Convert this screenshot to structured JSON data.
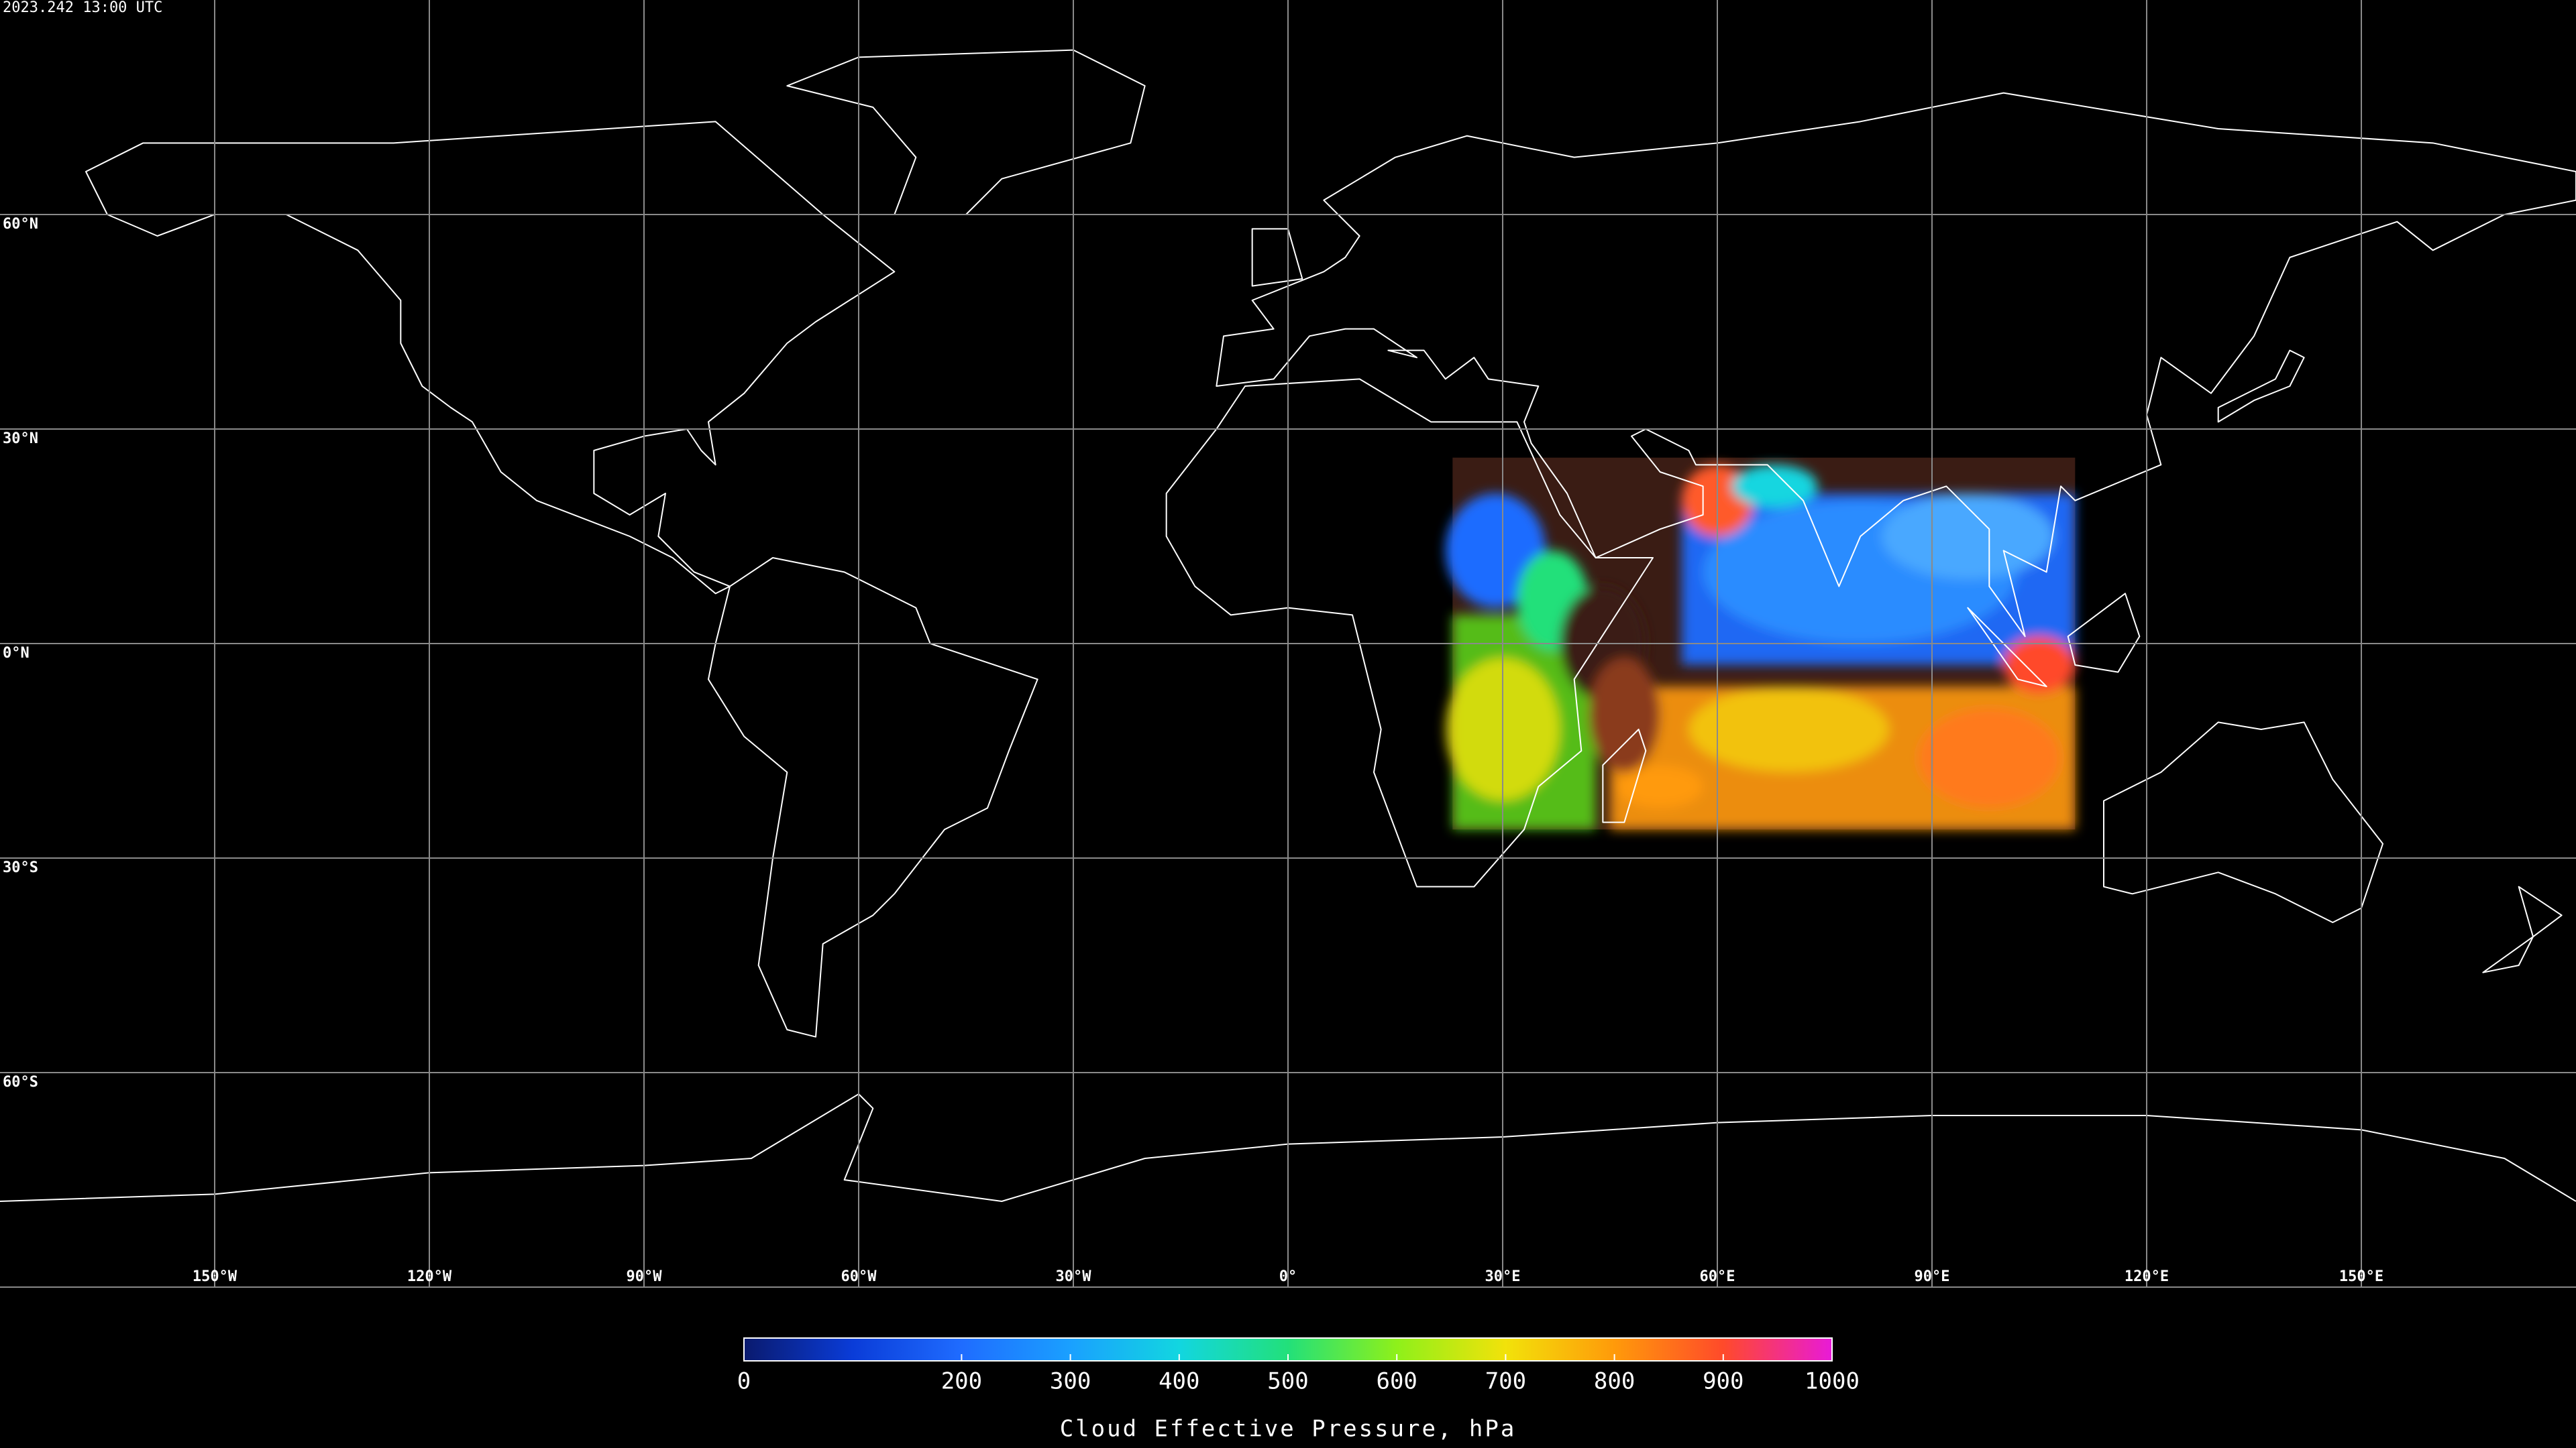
{
  "timestamp": "2023.242 13:00 UTC",
  "map": {
    "lon_range": [
      -180,
      180
    ],
    "lat_range": [
      -90,
      90
    ],
    "lat_lines": [
      {
        "value": 60,
        "label": "60°N"
      },
      {
        "value": 30,
        "label": "30°N"
      },
      {
        "value": 0,
        "label": "0°N"
      },
      {
        "value": -30,
        "label": "30°S"
      },
      {
        "value": -60,
        "label": "60°S"
      }
    ],
    "lon_lines": [
      {
        "value": -150,
        "label": "150°W"
      },
      {
        "value": -120,
        "label": "120°W"
      },
      {
        "value": -90,
        "label": "90°W"
      },
      {
        "value": -60,
        "label": "60°W"
      },
      {
        "value": -30,
        "label": "30°W"
      },
      {
        "value": 0,
        "label": "0°"
      },
      {
        "value": 30,
        "label": "30°E"
      },
      {
        "value": 60,
        "label": "60°E"
      },
      {
        "value": 90,
        "label": "90°E"
      },
      {
        "value": 120,
        "label": "120°E"
      },
      {
        "value": 150,
        "label": "150°E"
      }
    ]
  },
  "colorbar": {
    "title": "Cloud Effective Pressure, hPa",
    "range": [
      0,
      1000
    ],
    "ticks": [
      0,
      200,
      300,
      400,
      500,
      600,
      700,
      800,
      900,
      1000
    ],
    "colors": [
      "#0a1a6e",
      "#0a3cd8",
      "#1f6cff",
      "#1aa0ff",
      "#12d6e0",
      "#22e07a",
      "#8ef01a",
      "#f2e20a",
      "#ff9a0a",
      "#ff4a2a",
      "#e81ad8"
    ]
  }
}
